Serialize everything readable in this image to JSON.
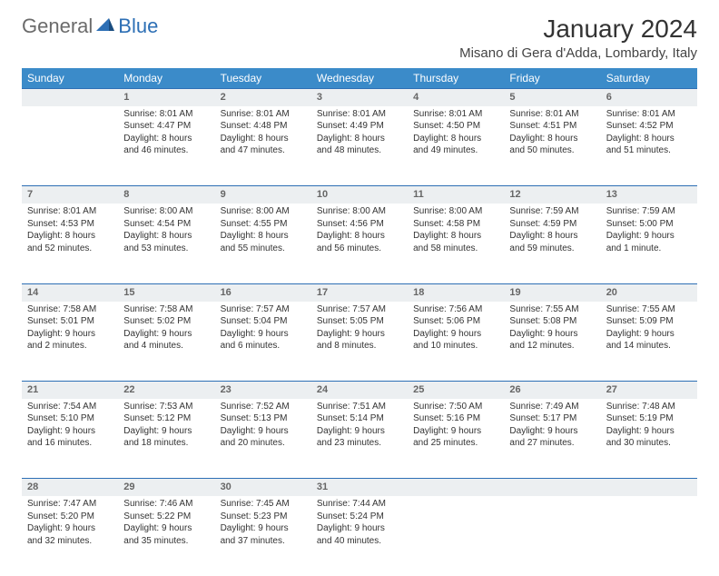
{
  "brand": {
    "text1": "General",
    "text2": "Blue"
  },
  "title": "January 2024",
  "location": "Misano di Gera d'Adda, Lombardy, Italy",
  "colors": {
    "header_bg": "#3b8bc9",
    "header_text": "#ffffff",
    "accent_border": "#2d6fb5",
    "daynum_bg": "#eceff1",
    "daynum_text": "#666666",
    "body_text": "#333333",
    "brand_gray": "#6b6b6b",
    "brand_blue": "#2d6fb5",
    "page_bg": "#ffffff"
  },
  "fonts": {
    "title_size_pt": 21,
    "location_size_pt": 11,
    "day_header_size_pt": 9,
    "daynum_size_pt": 8,
    "cell_size_pt": 7.5
  },
  "day_headers": [
    "Sunday",
    "Monday",
    "Tuesday",
    "Wednesday",
    "Thursday",
    "Friday",
    "Saturday"
  ],
  "weeks": [
    {
      "nums": [
        "",
        "1",
        "2",
        "3",
        "4",
        "5",
        "6"
      ],
      "cells": [
        null,
        {
          "sunrise": "Sunrise: 8:01 AM",
          "sunset": "Sunset: 4:47 PM",
          "daylight": "Daylight: 8 hours and 46 minutes."
        },
        {
          "sunrise": "Sunrise: 8:01 AM",
          "sunset": "Sunset: 4:48 PM",
          "daylight": "Daylight: 8 hours and 47 minutes."
        },
        {
          "sunrise": "Sunrise: 8:01 AM",
          "sunset": "Sunset: 4:49 PM",
          "daylight": "Daylight: 8 hours and 48 minutes."
        },
        {
          "sunrise": "Sunrise: 8:01 AM",
          "sunset": "Sunset: 4:50 PM",
          "daylight": "Daylight: 8 hours and 49 minutes."
        },
        {
          "sunrise": "Sunrise: 8:01 AM",
          "sunset": "Sunset: 4:51 PM",
          "daylight": "Daylight: 8 hours and 50 minutes."
        },
        {
          "sunrise": "Sunrise: 8:01 AM",
          "sunset": "Sunset: 4:52 PM",
          "daylight": "Daylight: 8 hours and 51 minutes."
        }
      ]
    },
    {
      "nums": [
        "7",
        "8",
        "9",
        "10",
        "11",
        "12",
        "13"
      ],
      "cells": [
        {
          "sunrise": "Sunrise: 8:01 AM",
          "sunset": "Sunset: 4:53 PM",
          "daylight": "Daylight: 8 hours and 52 minutes."
        },
        {
          "sunrise": "Sunrise: 8:00 AM",
          "sunset": "Sunset: 4:54 PM",
          "daylight": "Daylight: 8 hours and 53 minutes."
        },
        {
          "sunrise": "Sunrise: 8:00 AM",
          "sunset": "Sunset: 4:55 PM",
          "daylight": "Daylight: 8 hours and 55 minutes."
        },
        {
          "sunrise": "Sunrise: 8:00 AM",
          "sunset": "Sunset: 4:56 PM",
          "daylight": "Daylight: 8 hours and 56 minutes."
        },
        {
          "sunrise": "Sunrise: 8:00 AM",
          "sunset": "Sunset: 4:58 PM",
          "daylight": "Daylight: 8 hours and 58 minutes."
        },
        {
          "sunrise": "Sunrise: 7:59 AM",
          "sunset": "Sunset: 4:59 PM",
          "daylight": "Daylight: 8 hours and 59 minutes."
        },
        {
          "sunrise": "Sunrise: 7:59 AM",
          "sunset": "Sunset: 5:00 PM",
          "daylight": "Daylight: 9 hours and 1 minute."
        }
      ]
    },
    {
      "nums": [
        "14",
        "15",
        "16",
        "17",
        "18",
        "19",
        "20"
      ],
      "cells": [
        {
          "sunrise": "Sunrise: 7:58 AM",
          "sunset": "Sunset: 5:01 PM",
          "daylight": "Daylight: 9 hours and 2 minutes."
        },
        {
          "sunrise": "Sunrise: 7:58 AM",
          "sunset": "Sunset: 5:02 PM",
          "daylight": "Daylight: 9 hours and 4 minutes."
        },
        {
          "sunrise": "Sunrise: 7:57 AM",
          "sunset": "Sunset: 5:04 PM",
          "daylight": "Daylight: 9 hours and 6 minutes."
        },
        {
          "sunrise": "Sunrise: 7:57 AM",
          "sunset": "Sunset: 5:05 PM",
          "daylight": "Daylight: 9 hours and 8 minutes."
        },
        {
          "sunrise": "Sunrise: 7:56 AM",
          "sunset": "Sunset: 5:06 PM",
          "daylight": "Daylight: 9 hours and 10 minutes."
        },
        {
          "sunrise": "Sunrise: 7:55 AM",
          "sunset": "Sunset: 5:08 PM",
          "daylight": "Daylight: 9 hours and 12 minutes."
        },
        {
          "sunrise": "Sunrise: 7:55 AM",
          "sunset": "Sunset: 5:09 PM",
          "daylight": "Daylight: 9 hours and 14 minutes."
        }
      ]
    },
    {
      "nums": [
        "21",
        "22",
        "23",
        "24",
        "25",
        "26",
        "27"
      ],
      "cells": [
        {
          "sunrise": "Sunrise: 7:54 AM",
          "sunset": "Sunset: 5:10 PM",
          "daylight": "Daylight: 9 hours and 16 minutes."
        },
        {
          "sunrise": "Sunrise: 7:53 AM",
          "sunset": "Sunset: 5:12 PM",
          "daylight": "Daylight: 9 hours and 18 minutes."
        },
        {
          "sunrise": "Sunrise: 7:52 AM",
          "sunset": "Sunset: 5:13 PM",
          "daylight": "Daylight: 9 hours and 20 minutes."
        },
        {
          "sunrise": "Sunrise: 7:51 AM",
          "sunset": "Sunset: 5:14 PM",
          "daylight": "Daylight: 9 hours and 23 minutes."
        },
        {
          "sunrise": "Sunrise: 7:50 AM",
          "sunset": "Sunset: 5:16 PM",
          "daylight": "Daylight: 9 hours and 25 minutes."
        },
        {
          "sunrise": "Sunrise: 7:49 AM",
          "sunset": "Sunset: 5:17 PM",
          "daylight": "Daylight: 9 hours and 27 minutes."
        },
        {
          "sunrise": "Sunrise: 7:48 AM",
          "sunset": "Sunset: 5:19 PM",
          "daylight": "Daylight: 9 hours and 30 minutes."
        }
      ]
    },
    {
      "nums": [
        "28",
        "29",
        "30",
        "31",
        "",
        "",
        ""
      ],
      "cells": [
        {
          "sunrise": "Sunrise: 7:47 AM",
          "sunset": "Sunset: 5:20 PM",
          "daylight": "Daylight: 9 hours and 32 minutes."
        },
        {
          "sunrise": "Sunrise: 7:46 AM",
          "sunset": "Sunset: 5:22 PM",
          "daylight": "Daylight: 9 hours and 35 minutes."
        },
        {
          "sunrise": "Sunrise: 7:45 AM",
          "sunset": "Sunset: 5:23 PM",
          "daylight": "Daylight: 9 hours and 37 minutes."
        },
        {
          "sunrise": "Sunrise: 7:44 AM",
          "sunset": "Sunset: 5:24 PM",
          "daylight": "Daylight: 9 hours and 40 minutes."
        },
        null,
        null,
        null
      ]
    }
  ]
}
